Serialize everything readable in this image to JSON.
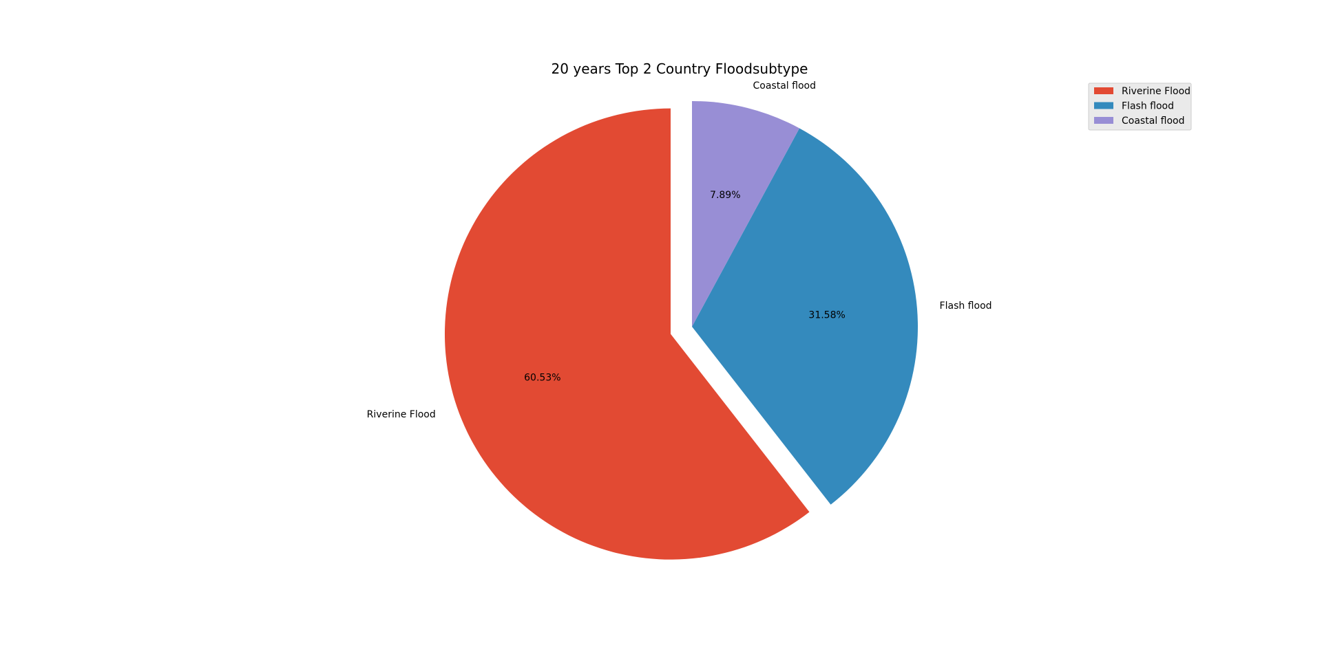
{
  "chart_data": {
    "type": "pie",
    "title": "20 years Top 2 Country Floodsubtype",
    "labels": [
      "Riverine Flood",
      "Flash flood",
      "Coastal flood"
    ],
    "values": [
      60.53,
      31.58,
      7.89
    ],
    "percent_labels": [
      "60.53%",
      "31.58%",
      "7.89%"
    ],
    "colors": [
      "#E24A33",
      "#348ABD",
      "#988ED5"
    ],
    "exploded": [
      "Riverine Flood"
    ],
    "start_angle_deg": 90,
    "direction": "counterclockwise",
    "legend": {
      "placement": "top-right",
      "entries": [
        "Riverine Flood",
        "Flash flood",
        "Coastal flood"
      ]
    }
  }
}
